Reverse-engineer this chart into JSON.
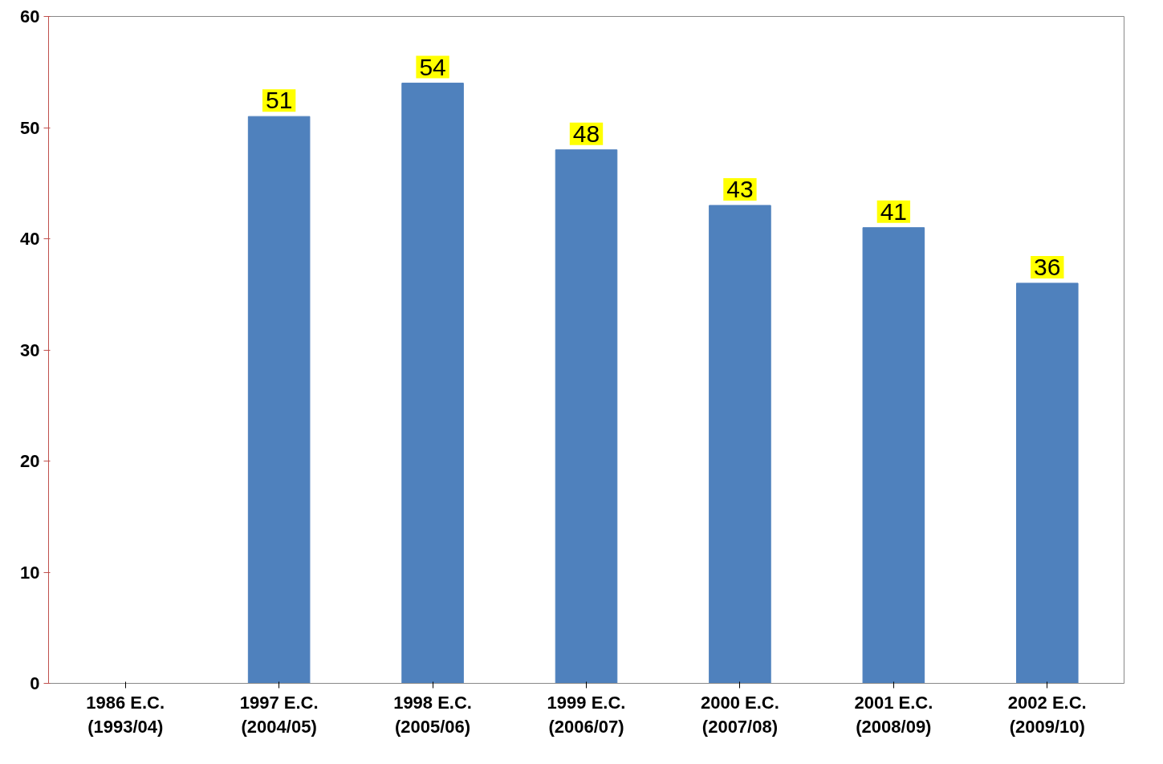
{
  "chart_data": {
    "type": "bar",
    "categories": [
      "1986 E.C.\n(1993/04)",
      "1997 E.C.\n(2004/05)",
      "1998 E.C.\n(2005/06)",
      "1999 E.C.\n(2006/07)",
      "2000 E.C.\n(2007/08)",
      "2001 E.C.\n(2008/09)",
      "2002 E.C.\n(2009/10)"
    ],
    "values": [
      null,
      51,
      54,
      48,
      43,
      41,
      36
    ],
    "color": "#4f81bd",
    "ylim": [
      0,
      60
    ],
    "yticks": [
      0,
      10,
      20,
      30,
      40,
      50,
      60
    ],
    "data_labels": true,
    "grid": false
  }
}
